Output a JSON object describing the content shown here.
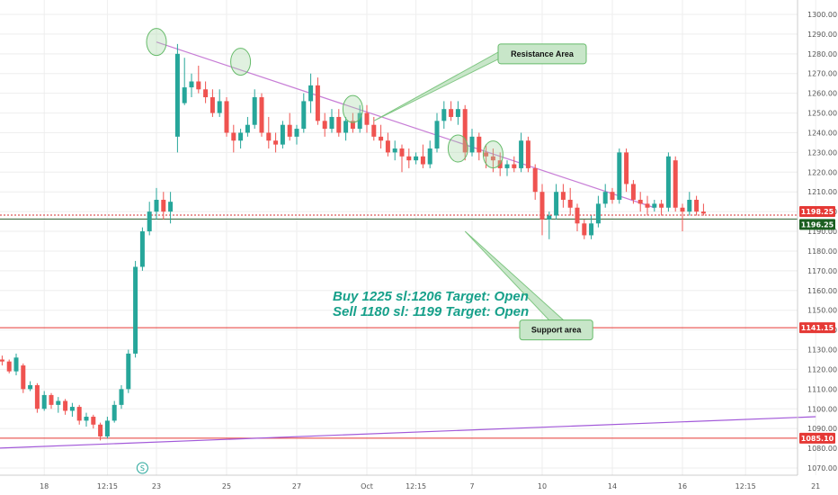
{
  "chart_data": {
    "type": "candlestick",
    "y_axis": {
      "min": 1065,
      "max": 1305,
      "ticks": [
        1070,
        1080,
        1090,
        1100,
        1110,
        1120,
        1130,
        1140,
        1150,
        1160,
        1170,
        1180,
        1190,
        1200,
        1210,
        1220,
        1230,
        1240,
        1250,
        1260,
        1270,
        1280,
        1290,
        1300
      ],
      "tick_labels": [
        "1070.00",
        "1080.00",
        "1090.00",
        "1100.00",
        "1110.00",
        "1120.00",
        "1130.00",
        "1140.00",
        "1150.00",
        "1160.00",
        "1170.00",
        "1180.00",
        "1190.00",
        "1200.00",
        "1210.00",
        "1220.00",
        "1230.00",
        "1240.00",
        "1250.00",
        "1260.00",
        "1270.00",
        "1280.00",
        "1290.00",
        "1300.00"
      ]
    },
    "x_axis": {
      "labels": [
        "18",
        "12:15",
        "23",
        "25",
        "27",
        "Oct",
        "12:15",
        "7",
        "10",
        "14",
        "16",
        "12:15",
        "21"
      ],
      "label_positions": [
        -16,
        -7,
        0,
        10,
        20,
        30,
        37,
        45,
        55,
        65,
        75,
        84,
        94
      ]
    },
    "candles": [
      [
        -22,
        1125,
        1127,
        1122,
        1124
      ],
      [
        -21,
        1124,
        1125,
        1118,
        1119
      ],
      [
        -20,
        1119,
        1128,
        1117,
        1126
      ],
      [
        -19,
        1122,
        1123,
        1108,
        1110
      ],
      [
        -18,
        1110,
        1114,
        1109,
        1112
      ],
      [
        -17,
        1112,
        1113,
        1098,
        1100
      ],
      [
        -16,
        1100,
        1109,
        1099,
        1107
      ],
      [
        -15,
        1107,
        1108,
        1100,
        1102
      ],
      [
        -14,
        1102,
        1106,
        1098,
        1104
      ],
      [
        -13,
        1104,
        1105,
        1097,
        1099
      ],
      [
        -12,
        1099,
        1103,
        1096,
        1101
      ],
      [
        -11,
        1101,
        1102,
        1092,
        1094
      ],
      [
        -10,
        1094,
        1098,
        1091,
        1096
      ],
      [
        -9,
        1096,
        1097,
        1090,
        1092
      ],
      [
        -8,
        1092,
        1093,
        1084,
        1086
      ],
      [
        -7,
        1086,
        1096,
        1085,
        1094
      ],
      [
        -6,
        1094,
        1104,
        1093,
        1102
      ],
      [
        -5,
        1102,
        1112,
        1100,
        1110
      ],
      [
        -4,
        1110,
        1130,
        1108,
        1128
      ],
      [
        -3,
        1128,
        1175,
        1126,
        1172
      ],
      [
        -2,
        1172,
        1192,
        1170,
        1190
      ],
      [
        -1,
        1190,
        1205,
        1188,
        1200
      ],
      [
        0,
        1200,
        1212,
        1196,
        1206
      ],
      [
        1,
        1206,
        1210,
        1196,
        1200
      ],
      [
        2,
        1200,
        1210,
        1194,
        1205
      ],
      [
        3,
        1238,
        1285,
        1230,
        1280
      ],
      [
        4,
        1255,
        1278,
        1254,
        1263
      ],
      [
        5,
        1263,
        1270,
        1258,
        1266
      ],
      [
        6,
        1266,
        1274,
        1260,
        1262
      ],
      [
        7,
        1262,
        1266,
        1255,
        1258
      ],
      [
        8,
        1258,
        1262,
        1248,
        1250
      ],
      [
        9,
        1250,
        1262,
        1248,
        1256
      ],
      [
        10,
        1256,
        1258,
        1238,
        1240
      ],
      [
        11,
        1240,
        1244,
        1230,
        1236
      ],
      [
        12,
        1236,
        1242,
        1232,
        1240
      ],
      [
        13,
        1240,
        1248,
        1238,
        1244
      ],
      [
        14,
        1244,
        1262,
        1242,
        1258
      ],
      [
        15,
        1258,
        1260,
        1238,
        1240
      ],
      [
        16,
        1240,
        1248,
        1232,
        1236
      ],
      [
        17,
        1236,
        1240,
        1230,
        1234
      ],
      [
        18,
        1234,
        1246,
        1232,
        1244
      ],
      [
        19,
        1244,
        1250,
        1236,
        1238
      ],
      [
        20,
        1238,
        1244,
        1234,
        1242
      ],
      [
        21,
        1242,
        1260,
        1240,
        1256
      ],
      [
        22,
        1256,
        1270,
        1250,
        1264
      ],
      [
        23,
        1264,
        1268,
        1244,
        1246
      ],
      [
        24,
        1246,
        1250,
        1238,
        1242
      ],
      [
        25,
        1242,
        1252,
        1240,
        1248
      ],
      [
        26,
        1248,
        1252,
        1238,
        1240
      ],
      [
        27,
        1240,
        1248,
        1236,
        1246
      ],
      [
        28,
        1246,
        1250,
        1240,
        1242
      ],
      [
        29,
        1242,
        1254,
        1240,
        1250
      ],
      [
        30,
        1250,
        1254,
        1240,
        1244
      ],
      [
        31,
        1244,
        1248,
        1236,
        1238
      ],
      [
        32,
        1238,
        1244,
        1232,
        1236
      ],
      [
        33,
        1236,
        1240,
        1228,
        1230
      ],
      [
        34,
        1230,
        1236,
        1226,
        1232
      ],
      [
        35,
        1232,
        1234,
        1220,
        1228
      ],
      [
        36,
        1228,
        1232,
        1222,
        1226
      ],
      [
        37,
        1226,
        1230,
        1224,
        1228
      ],
      [
        38,
        1228,
        1234,
        1222,
        1224
      ],
      [
        39,
        1224,
        1236,
        1222,
        1232
      ],
      [
        40,
        1232,
        1250,
        1230,
        1246
      ],
      [
        41,
        1246,
        1256,
        1242,
        1252
      ],
      [
        42,
        1252,
        1256,
        1246,
        1248
      ],
      [
        43,
        1248,
        1256,
        1244,
        1252
      ],
      [
        44,
        1252,
        1254,
        1226,
        1230
      ],
      [
        45,
        1230,
        1242,
        1228,
        1238
      ],
      [
        46,
        1238,
        1240,
        1226,
        1230
      ],
      [
        47,
        1230,
        1234,
        1222,
        1228
      ],
      [
        48,
        1228,
        1232,
        1220,
        1226
      ],
      [
        49,
        1226,
        1230,
        1218,
        1222
      ],
      [
        50,
        1222,
        1226,
        1218,
        1224
      ],
      [
        51,
        1224,
        1228,
        1220,
        1222
      ],
      [
        52,
        1222,
        1240,
        1220,
        1236
      ],
      [
        53,
        1236,
        1238,
        1220,
        1222
      ],
      [
        54,
        1222,
        1224,
        1206,
        1210
      ],
      [
        55,
        1210,
        1214,
        1188,
        1196
      ],
      [
        56,
        1196,
        1200,
        1186,
        1198
      ],
      [
        57,
        1198,
        1214,
        1196,
        1210
      ],
      [
        58,
        1210,
        1214,
        1202,
        1206
      ],
      [
        59,
        1206,
        1212,
        1198,
        1202
      ],
      [
        60,
        1202,
        1204,
        1190,
        1194
      ],
      [
        61,
        1194,
        1196,
        1186,
        1188
      ],
      [
        62,
        1188,
        1198,
        1186,
        1194
      ],
      [
        63,
        1194,
        1208,
        1192,
        1204
      ],
      [
        64,
        1204,
        1214,
        1202,
        1210
      ],
      [
        65,
        1210,
        1212,
        1204,
        1206
      ],
      [
        66,
        1206,
        1232,
        1204,
        1230
      ],
      [
        67,
        1230,
        1232,
        1210,
        1214
      ],
      [
        68,
        1214,
        1216,
        1204,
        1206
      ],
      [
        69,
        1206,
        1210,
        1200,
        1204
      ],
      [
        70,
        1204,
        1208,
        1198,
        1202
      ],
      [
        71,
        1202,
        1206,
        1200,
        1204
      ],
      [
        72,
        1204,
        1206,
        1198,
        1202
      ],
      [
        73,
        1202,
        1230,
        1200,
        1228
      ],
      [
        74,
        1226,
        1228,
        1200,
        1202
      ],
      [
        75,
        1202,
        1204,
        1190,
        1200
      ],
      [
        76,
        1200,
        1210,
        1198,
        1206
      ],
      [
        77,
        1206,
        1208,
        1198,
        1200
      ],
      [
        78,
        1200,
        1204,
        1198,
        1199
      ]
    ],
    "horizontal_lines": [
      {
        "price": 1198.25,
        "color": "#d32f2f",
        "style": "dotted"
      },
      {
        "price": 1196.25,
        "color": "#2e5e2e",
        "style": "solid"
      },
      {
        "price": 1141.15,
        "color": "#e53935",
        "style": "solid"
      },
      {
        "price": 1085.1,
        "color": "#e53935",
        "style": "solid"
      }
    ],
    "trendlines": [
      {
        "from": [
          0,
          1286
        ],
        "to": [
          71,
          1202
        ],
        "color": "#c77dd6"
      },
      {
        "from": [
          -23,
          1080
        ],
        "to": [
          94,
          1096
        ],
        "color": "#a259d9"
      }
    ],
    "price_tags": [
      {
        "price": 1198.25,
        "label": "1198.25",
        "color": "#e53935"
      },
      {
        "price": 1196.25,
        "label": "1196.25",
        "color": "#1b5e20"
      },
      {
        "price": 1141.15,
        "label": "1141.15",
        "color": "#e53935"
      },
      {
        "price": 1085.1,
        "label": "1085.10",
        "color": "#e53935"
      }
    ],
    "highlight_circles": [
      {
        "x": 0,
        "price": 1286
      },
      {
        "x": 12,
        "price": 1276
      },
      {
        "x": 28,
        "price": 1252
      },
      {
        "x": 43,
        "price": 1232
      },
      {
        "x": 48,
        "price": 1229
      }
    ],
    "callouts": [
      {
        "label": "Resistance Area",
        "box_x": 55,
        "box_price": 1280,
        "pointer_x": 31,
        "pointer_price": 1246
      },
      {
        "label": "Support area",
        "box_x": 57,
        "box_price": 1140,
        "pointer_x": 44,
        "pointer_price": 1190
      }
    ],
    "annotation_lines": [
      "Buy 1225 sl:1206 Target: Open",
      "Sell 1180 sl: 1199 Target: Open"
    ],
    "event_marker": {
      "label": "S",
      "x": -2
    },
    "colors": {
      "up": "#26a69a",
      "down": "#ef5350",
      "background": "#ffffff",
      "grid": "#eeeeee"
    }
  }
}
